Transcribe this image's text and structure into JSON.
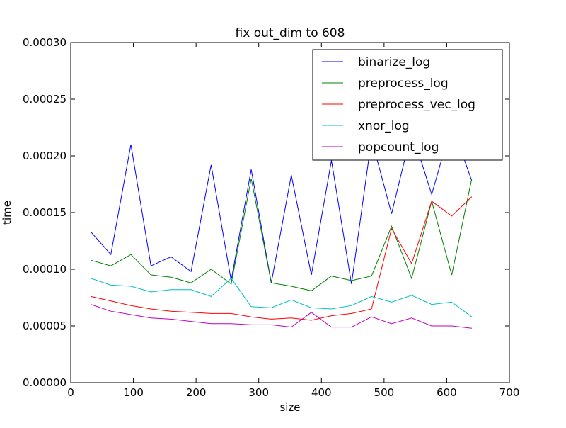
{
  "chart_data": {
    "type": "line",
    "title": "fix out_dim to 608",
    "xlabel": "size",
    "ylabel": "time",
    "xlim": [
      0,
      700
    ],
    "ylim": [
      0,
      0.0003
    ],
    "x_ticks": [
      0,
      100,
      200,
      300,
      400,
      500,
      600,
      700
    ],
    "x_tick_labels": [
      "0",
      "100",
      "200",
      "300",
      "400",
      "500",
      "600",
      "700"
    ],
    "y_ticks": [
      0,
      5e-05,
      0.0001,
      0.00015,
      0.0002,
      0.00025,
      0.0003
    ],
    "y_tick_labels": [
      "0.00000",
      "0.00005",
      "0.00010",
      "0.00015",
      "0.00020",
      "0.00025",
      "0.00030"
    ],
    "grid": false,
    "legend_position": "top-right",
    "x": [
      32,
      64,
      96,
      128,
      160,
      192,
      224,
      256,
      288,
      320,
      352,
      384,
      416,
      448,
      480,
      512,
      544,
      576,
      608,
      640
    ],
    "series": [
      {
        "name": "binarize_log",
        "color": "#0000ff",
        "values": [
          0.000133,
          0.000113,
          0.00021,
          0.000103,
          0.000111,
          9.8e-05,
          0.000192,
          9e-05,
          0.000188,
          8.8e-05,
          0.000183,
          9.5e-05,
          0.000196,
          8.7e-05,
          0.000215,
          0.000149,
          0.000222,
          0.000166,
          0.000228,
          0.000178
        ]
      },
      {
        "name": "preprocess_log",
        "color": "#008000",
        "values": [
          0.000108,
          0.000103,
          0.000113,
          9.5e-05,
          9.3e-05,
          8.8e-05,
          0.0001,
          8.7e-05,
          0.00018,
          8.8e-05,
          8.5e-05,
          8.1e-05,
          9.4e-05,
          9e-05,
          9.4e-05,
          0.000138,
          9.2e-05,
          0.00016,
          9.5e-05,
          0.00018
        ]
      },
      {
        "name": "preprocess_vec_log",
        "color": "#ff0000",
        "values": [
          7.6e-05,
          7.2e-05,
          6.8e-05,
          6.5e-05,
          6.3e-05,
          6.2e-05,
          6.1e-05,
          6.1e-05,
          5.8e-05,
          5.6e-05,
          5.7e-05,
          5.5e-05,
          5.9e-05,
          6.1e-05,
          6.5e-05,
          0.000136,
          0.000105,
          0.00016,
          0.000147,
          0.000164
        ]
      },
      {
        "name": "xnor_log",
        "color": "#00bfbf",
        "values": [
          9.2e-05,
          8.6e-05,
          8.5e-05,
          8e-05,
          8.2e-05,
          8.2e-05,
          7.6e-05,
          9.2e-05,
          6.7e-05,
          6.6e-05,
          7.3e-05,
          6.6e-05,
          6.5e-05,
          6.8e-05,
          7.6e-05,
          7.1e-05,
          7.7e-05,
          6.9e-05,
          7.1e-05,
          5.8e-05
        ]
      },
      {
        "name": "popcount_log",
        "color": "#bf00bf",
        "values": [
          6.9e-05,
          6.3e-05,
          6e-05,
          5.7e-05,
          5.6e-05,
          5.4e-05,
          5.2e-05,
          5.2e-05,
          5.1e-05,
          5.1e-05,
          4.9e-05,
          6.2e-05,
          4.9e-05,
          4.9e-05,
          5.8e-05,
          5.2e-05,
          5.7e-05,
          5e-05,
          5e-05,
          4.8e-05
        ]
      }
    ]
  }
}
